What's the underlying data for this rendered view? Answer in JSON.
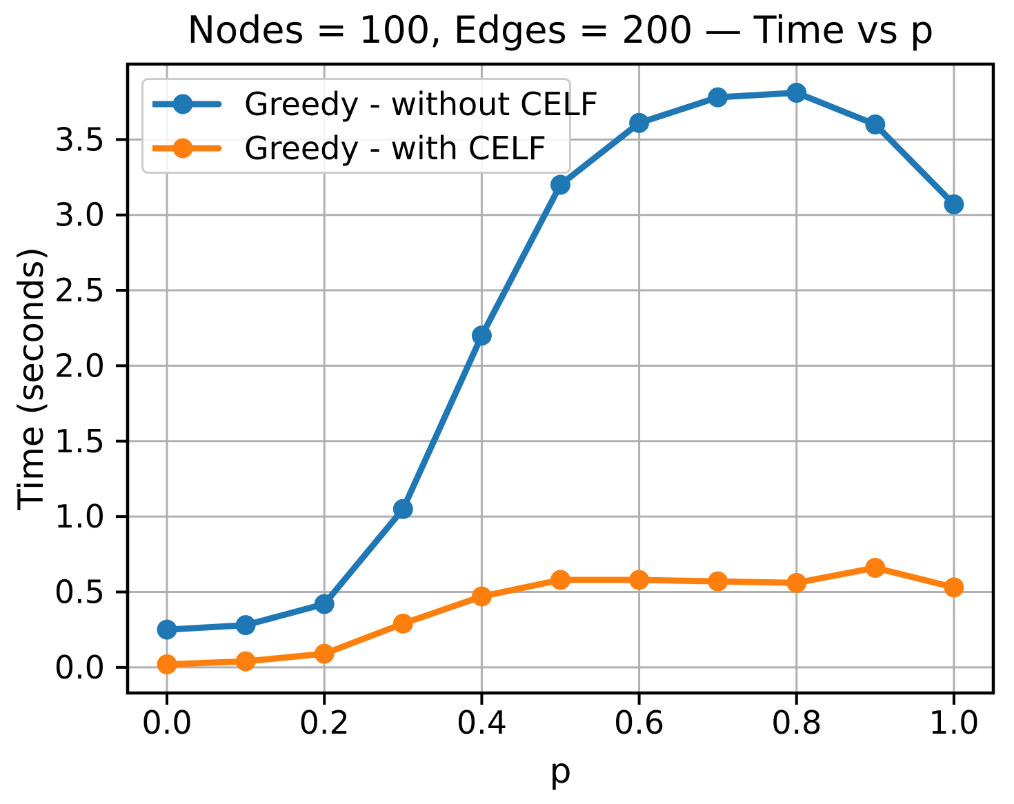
{
  "chart_data": {
    "type": "line",
    "title": "Nodes = 100, Edges = 200 — Time vs p",
    "xlabel": "p",
    "ylabel": "Time (seconds)",
    "x": [
      0.0,
      0.1,
      0.2,
      0.3,
      0.4,
      0.5,
      0.6,
      0.7,
      0.8,
      0.9,
      1.0
    ],
    "series": [
      {
        "name": "Greedy - without CELF",
        "color": "#1f77b4",
        "values": [
          0.25,
          0.28,
          0.42,
          1.05,
          2.2,
          3.2,
          3.61,
          3.78,
          3.81,
          3.6,
          3.07
        ]
      },
      {
        "name": "Greedy - with CELF",
        "color": "#ff7f0e",
        "values": [
          0.02,
          0.04,
          0.09,
          0.29,
          0.47,
          0.58,
          0.58,
          0.57,
          0.56,
          0.66,
          0.53
        ]
      }
    ],
    "xticks": [
      0.0,
      0.2,
      0.4,
      0.6,
      0.8,
      1.0
    ],
    "yticks": [
      0.0,
      0.5,
      1.0,
      1.5,
      2.0,
      2.5,
      3.0,
      3.5
    ],
    "xtick_labels": [
      "0.0",
      "0.2",
      "0.4",
      "0.6",
      "0.8",
      "1.0"
    ],
    "ytick_labels": [
      "0.0",
      "0.5",
      "1.0",
      "1.5",
      "2.0",
      "2.5",
      "3.0",
      "3.5"
    ],
    "xlim": [
      -0.05,
      1.05
    ],
    "ylim": [
      -0.17,
      4.0
    ],
    "grid": true,
    "legend_position": "upper left",
    "colors": {
      "grid": "#b0b0b0",
      "axis": "#000000",
      "tick_label": "#000000",
      "legend_border": "#cccccc",
      "background": "#ffffff"
    }
  }
}
